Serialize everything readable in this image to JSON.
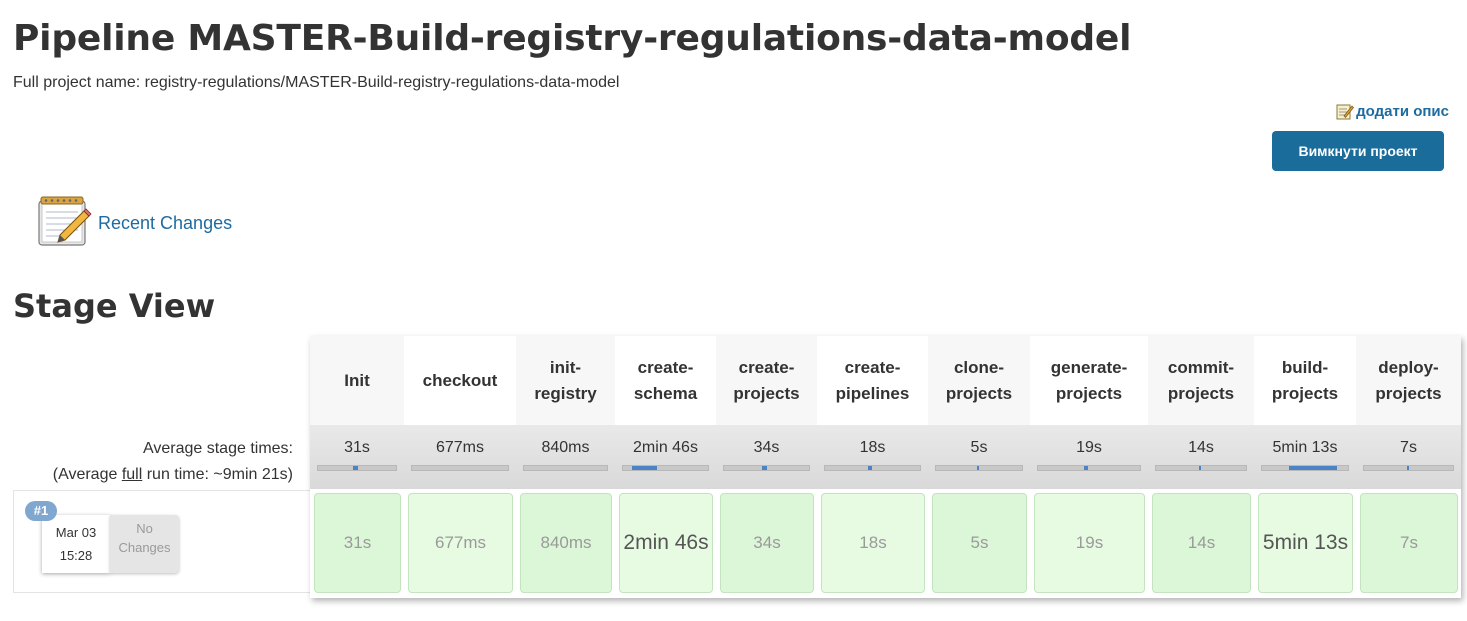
{
  "page": {
    "title": "Pipeline MASTER-Build-registry-regulations-data-model",
    "full_project_name": "Full project name: registry-regulations/MASTER-Build-registry-regulations-data-model",
    "add_description": "додати опис",
    "disable_button": "Вимкнути проект",
    "recent_changes": "Recent Changes",
    "stage_view_heading": "Stage View"
  },
  "average": {
    "label_line1": "Average stage times:",
    "label_prefix": "(Average ",
    "label_full": "full",
    "label_suffix": " run time: ~9min 21s)"
  },
  "run": {
    "badge": "#1",
    "date": "Mar 03",
    "time": "15:28",
    "changes_line1": "No",
    "changes_line2": "Changes"
  },
  "stages": [
    {
      "name_line1": "Init",
      "name_line2": "",
      "avg": "31s",
      "duration": "31s",
      "bar_fraction": 0.06
    },
    {
      "name_line1": "checkout",
      "name_line2": "",
      "avg": "677ms",
      "duration": "677ms",
      "bar_fraction": 0.0
    },
    {
      "name_line1": "init-",
      "name_line2": "registry",
      "avg": "840ms",
      "duration": "840ms",
      "bar_fraction": 0.0
    },
    {
      "name_line1": "create-",
      "name_line2": "schema",
      "avg": "2min 46s",
      "duration": "2min 46s",
      "bar_fraction": 0.3
    },
    {
      "name_line1": "create-",
      "name_line2": "projects",
      "avg": "34s",
      "duration": "34s",
      "bar_fraction": 0.06
    },
    {
      "name_line1": "create-",
      "name_line2": "pipelines",
      "avg": "18s",
      "duration": "18s",
      "bar_fraction": 0.03
    },
    {
      "name_line1": "clone-",
      "name_line2": "projects",
      "avg": "5s",
      "duration": "5s",
      "bar_fraction": 0.01
    },
    {
      "name_line1": "generate-",
      "name_line2": "projects",
      "avg": "19s",
      "duration": "19s",
      "bar_fraction": 0.03
    },
    {
      "name_line1": "commit-",
      "name_line2": "projects",
      "avg": "14s",
      "duration": "14s",
      "bar_fraction": 0.02
    },
    {
      "name_line1": "build-",
      "name_line2": "projects",
      "avg": "5min 13s",
      "duration": "5min 13s",
      "bar_fraction": 0.56
    },
    {
      "name_line1": "deploy-",
      "name_line2": "projects",
      "avg": "7s",
      "duration": "7s",
      "bar_fraction": 0.01
    }
  ],
  "icons": {
    "add_description": "note-edit-icon",
    "recent_changes": "notepad-pencil-icon"
  },
  "colors": {
    "link": "#1d6ba0",
    "button": "#1a6c9b",
    "stage_success": "#dcf7d8",
    "progress": "#4a84c7"
  }
}
